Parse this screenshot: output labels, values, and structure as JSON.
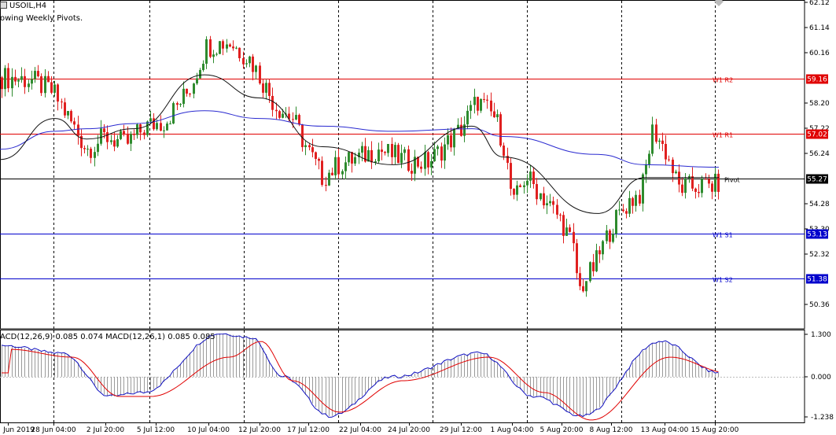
{
  "window": {
    "symbol_title": "USOIL,H4",
    "indicator_title": "owing Weekly Pivots."
  },
  "colors": {
    "bull": "#2e8b2e",
    "bear": "#e02020",
    "resistance": "#e00000",
    "support": "#0000cc",
    "pivot": "#000000",
    "ma_slow": "#2a2ad0",
    "ma_fast": "#111111",
    "macd_hist": "#9a9a9a",
    "macd_line": "#1010c0",
    "signal_line": "#e00000"
  },
  "price_scale": {
    "ticks": [
      "62.12",
      "61.14",
      "60.16",
      "59.16",
      "58.20",
      "57.22",
      "57.02",
      "56.24",
      "55.27",
      "54.28",
      "53.30",
      "53.13",
      "52.32",
      "51.38",
      "50.36"
    ]
  },
  "pivot_lines": [
    {
      "label": "W1 R2",
      "price": 59.16,
      "tag": "59.16",
      "kind": "resistance"
    },
    {
      "label": "W1 R1",
      "price": 57.02,
      "tag": "57.02",
      "kind": "resistance"
    },
    {
      "label": "Pivot",
      "price": 55.27,
      "tag": "55.27",
      "kind": "pivot"
    },
    {
      "label": "W1 S1",
      "price": 53.13,
      "tag": "53.13",
      "kind": "support"
    },
    {
      "label": "W1 S2",
      "price": 51.38,
      "tag": "51.38",
      "kind": "support"
    }
  ],
  "time_axis": {
    "labels": [
      "Jun 2019",
      "28 Jun 04:00",
      "2 Jul 20:00",
      "5 Jul 12:00",
      "10 Jul 04:00",
      "12 Jul 20:00",
      "17 Jul 12:00",
      "22 Jul 04:00",
      "24 Jul 20:00",
      "29 Jul 12:00",
      "1 Aug 04:00",
      "5 Aug 20:00",
      "8 Aug 12:00",
      "13 Aug 04:00",
      "15 Aug 20:00"
    ]
  },
  "macd_panel": {
    "label": "ACD(12,26,9) 0.085 0.074 MACD(12,26,1) 0.085 0.085",
    "ticks": [
      "1.300",
      "0.000",
      "-1.238"
    ]
  },
  "chart_data": {
    "type": "candlestick",
    "symbol": "USOIL",
    "timeframe": "H4",
    "ylim": [
      49.9,
      62.3
    ],
    "y_ticks": [
      62.12,
      61.14,
      60.16,
      58.2,
      57.22,
      56.24,
      54.28,
      53.3,
      52.32,
      50.36
    ],
    "close_anchors": [
      {
        "x": "Jun 2019",
        "close": 59.2
      },
      {
        "x": "27 Jun",
        "close": 59.1
      },
      {
        "x": "28 Jun 04:00",
        "close": 58.6
      },
      {
        "x": "1 Jul",
        "close": 56.4
      },
      {
        "x": "2 Jul 20:00",
        "close": 56.9
      },
      {
        "x": "4 Jul",
        "close": 56.6
      },
      {
        "x": "5 Jul 12:00",
        "close": 57.3
      },
      {
        "x": "8 Jul",
        "close": 57.5
      },
      {
        "x": "9 Jul",
        "close": 58.7
      },
      {
        "x": "10 Jul 04:00",
        "close": 60.4
      },
      {
        "x": "11 Jul",
        "close": 60.6
      },
      {
        "x": "12 Jul 20:00",
        "close": 59.9
      },
      {
        "x": "15 Jul",
        "close": 58.1
      },
      {
        "x": "16 Jul",
        "close": 57.6
      },
      {
        "x": "17 Jul 12:00",
        "close": 56.3
      },
      {
        "x": "18 Jul",
        "close": 55.3
      },
      {
        "x": "19 Jul",
        "close": 55.8
      },
      {
        "x": "22 Jul 04:00",
        "close": 56.1
      },
      {
        "x": "23 Jul",
        "close": 56.4
      },
      {
        "x": "24 Jul 20:00",
        "close": 55.9
      },
      {
        "x": "26 Jul",
        "close": 55.9
      },
      {
        "x": "29 Jul 12:00",
        "close": 57.2
      },
      {
        "x": "30 Jul",
        "close": 58.3
      },
      {
        "x": "31 Jul",
        "close": 57.6
      },
      {
        "x": "1 Aug 04:00",
        "close": 56.6
      },
      {
        "x": "1 Aug",
        "close": 54.2
      },
      {
        "x": "2 Aug",
        "close": 55.4
      },
      {
        "x": "5 Aug 20:00",
        "close": 53.6
      },
      {
        "x": "6 Aug",
        "close": 52.6
      },
      {
        "x": "7 Aug",
        "close": 50.9
      },
      {
        "x": "7 Aug 20:00",
        "close": 51.9
      },
      {
        "x": "8 Aug 12:00",
        "close": 53.4
      },
      {
        "x": "9 Aug",
        "close": 54.4
      },
      {
        "x": "12 Aug",
        "close": 54.7
      },
      {
        "x": "13 Aug 04:00",
        "close": 57.2
      },
      {
        "x": "14 Aug",
        "close": 56.2
      },
      {
        "x": "14 Aug 20:00",
        "close": 54.9
      },
      {
        "x": "15 Aug 20:00",
        "close": 55.0
      },
      {
        "x": "16 Aug",
        "close": 55.1
      }
    ],
    "moving_averages": [
      {
        "name": "slow",
        "color": "#2a2ad0",
        "values": [
          56.4,
          57.1,
          57.2,
          57.4,
          57.9,
          57.6,
          57.3,
          57.1,
          57.2,
          56.9,
          56.2,
          55.8,
          55.7
        ]
      },
      {
        "name": "fast",
        "color": "#111111",
        "values": [
          56.0,
          57.6,
          56.8,
          57.2,
          59.3,
          58.4,
          56.5,
          55.8,
          57.3,
          56.1,
          53.9,
          55.3,
          55.3
        ]
      }
    ],
    "macd": {
      "ylim": [
        -1.238,
        1.3
      ],
      "histogram_shape": [
        0.8,
        0.6,
        -0.5,
        -0.4,
        1.1,
        1.0,
        0.0,
        -1.0,
        0.0,
        0.6,
        -0.5,
        -1.0,
        0.9,
        0.1
      ],
      "signal_shape": [
        0.7,
        0.5,
        -0.5,
        -0.5,
        0.5,
        0.9,
        -0.1,
        -0.9,
        -0.1,
        0.5,
        -0.4,
        -1.1,
        0.5,
        0.1
      ]
    }
  }
}
